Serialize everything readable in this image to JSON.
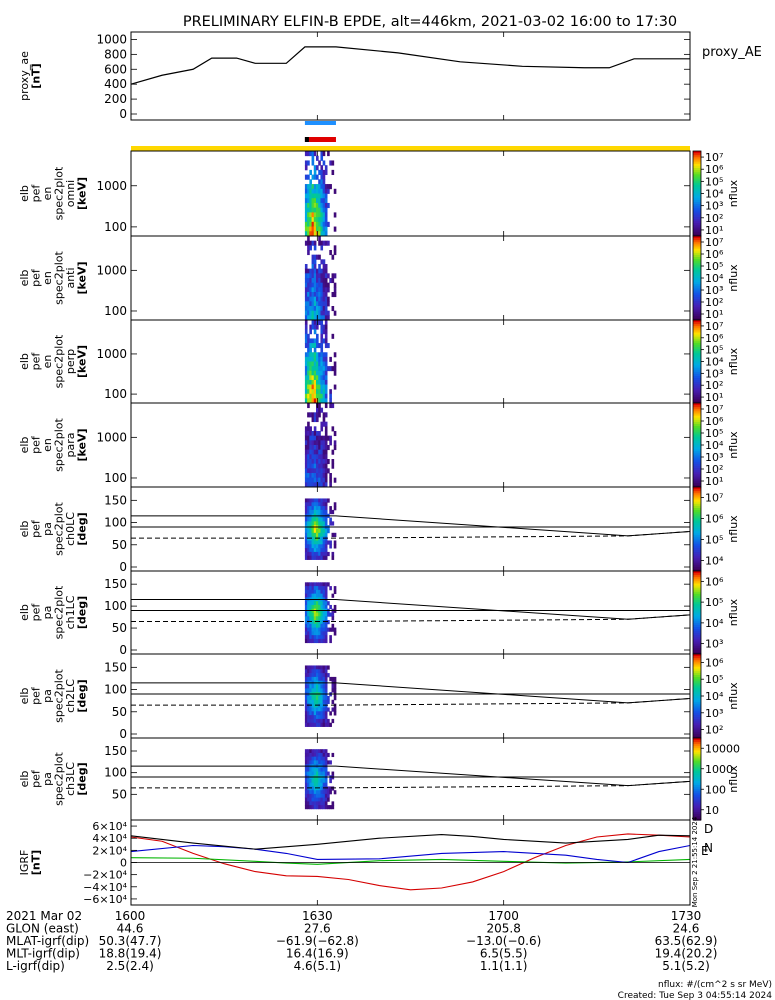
{
  "title": "PRELIMINARY ELFIN-B EPDE, alt=446km, 2021-03-02 16:00 to 17:30",
  "panels": [
    {
      "ylabel": [
        "proxy_ae",
        "[nT]"
      ],
      "right_label": "proxy_AE",
      "yticks": [
        "0",
        "200",
        "400",
        "600",
        "800",
        "1000"
      ]
    },
    {
      "ylabel": [
        "elb",
        "pef",
        "en",
        "spec2plot",
        "omni",
        "[keV]"
      ],
      "yticks": [
        "100",
        "1000"
      ],
      "cbar_ticks": [
        "10¹",
        "10²",
        "10³",
        "10⁴",
        "10⁵",
        "10⁶",
        "10⁷"
      ],
      "zlabel": "nflux"
    },
    {
      "ylabel": [
        "elb",
        "pef",
        "en",
        "spec2plot",
        "anti",
        "[keV]"
      ],
      "yticks": [
        "100",
        "1000"
      ],
      "cbar_ticks": [
        "10¹",
        "10²",
        "10³",
        "10⁴",
        "10⁵",
        "10⁶",
        "10⁷"
      ],
      "zlabel": "nflux"
    },
    {
      "ylabel": [
        "elb",
        "pef",
        "en",
        "spec2plot",
        "perp",
        "[keV]"
      ],
      "yticks": [
        "100",
        "1000"
      ],
      "cbar_ticks": [
        "10¹",
        "10²",
        "10³",
        "10⁴",
        "10⁵",
        "10⁶",
        "10⁷"
      ],
      "zlabel": "nflux"
    },
    {
      "ylabel": [
        "elb",
        "pef",
        "en",
        "spec2plot",
        "para",
        "[keV]"
      ],
      "yticks": [
        "100",
        "1000"
      ],
      "cbar_ticks": [
        "10¹",
        "10²",
        "10³",
        "10⁴",
        "10⁵",
        "10⁶",
        "10⁷"
      ],
      "zlabel": "nflux"
    },
    {
      "ylabel": [
        "elb",
        "pef",
        "pa",
        "spec2plot",
        "ch0LC",
        "[deg]"
      ],
      "yticks": [
        "0",
        "50",
        "100",
        "150"
      ],
      "cbar_ticks": [
        "10⁴",
        "10⁵",
        "10⁶",
        "10⁷"
      ],
      "zlabel": "nflux"
    },
    {
      "ylabel": [
        "elb",
        "pef",
        "pa",
        "spec2plot",
        "ch1LC",
        "[deg]"
      ],
      "yticks": [
        "0",
        "50",
        "100",
        "150"
      ],
      "cbar_ticks": [
        "10³",
        "10⁴",
        "10⁵",
        "10⁶"
      ],
      "zlabel": "nflux"
    },
    {
      "ylabel": [
        "elb",
        "pef",
        "pa",
        "spec2plot",
        "ch2LC",
        "[deg]"
      ],
      "yticks": [
        "0",
        "50",
        "100",
        "150"
      ],
      "cbar_ticks": [
        "10²",
        "10³",
        "10⁴",
        "10⁵",
        "10⁶"
      ],
      "zlabel": "nflux"
    },
    {
      "ylabel": [
        "elb",
        "pef",
        "pa",
        "spec2plot",
        "ch3LC",
        "[deg]"
      ],
      "yticks": [
        "50",
        "100",
        "150"
      ],
      "cbar_ticks": [
        "10",
        "100",
        "1000",
        "10000"
      ],
      "zlabel": "nflux"
    },
    {
      "ylabel": [
        "IGRF",
        "[nT]"
      ],
      "yticks": [
        "−6×10⁴",
        "−4×10⁴",
        "−2×10⁴",
        "0",
        "2×10⁴",
        "4×10⁴",
        "6×10⁴"
      ],
      "legend": [
        "D",
        "E",
        "N"
      ]
    }
  ],
  "footer": {
    "rows": [
      {
        "label": "2021 Mar 02",
        "values": [
          "1600",
          "1630",
          "1700",
          "1730"
        ]
      },
      {
        "label": "GLON (east)",
        "values": [
          "44.6",
          "27.6",
          "205.8",
          "24.6"
        ]
      },
      {
        "label": "MLAT-igrf(dip)",
        "values": [
          "50.3(47.7)",
          "−61.9(−62.8)",
          "−13.0(−0.6)",
          "63.5(62.9)"
        ]
      },
      {
        "label": "MLT-igrf(dip)",
        "values": [
          "18.8(19.4)",
          "16.4(16.9)",
          "6.5(5.5)",
          "19.4(20.2)"
        ]
      },
      {
        "label": "L-igrf(dip)",
        "values": [
          "2.5(2.4)",
          "4.6(5.1)",
          "1.1(1.1)",
          "5.1(5.2)"
        ]
      }
    ],
    "units": "nflux: #/(cm^2 s sr MeV)",
    "created": "Created: Tue Sep  3 04:55:14 2024",
    "side_stamp": "Mon Sep  2 21:55:14 2024"
  },
  "chart_data": {
    "type": "line",
    "x_range": [
      "16:00",
      "17:30"
    ],
    "x_ticks": [
      "1600",
      "1630",
      "1700",
      "1730"
    ],
    "proxy_ae": {
      "name": "proxy_AE",
      "x": [
        "16:00",
        "16:05",
        "16:10",
        "16:13",
        "16:17",
        "16:20",
        "16:25",
        "16:28",
        "16:33",
        "16:43",
        "16:53",
        "17:03",
        "17:13",
        "17:17",
        "17:21",
        "17:30"
      ],
      "y": [
        400,
        520,
        600,
        750,
        750,
        680,
        680,
        900,
        900,
        820,
        700,
        640,
        620,
        620,
        740,
        740
      ],
      "ylim": [
        0,
        1100
      ]
    },
    "science_zone": {
      "start": "16:28",
      "end": "16:33"
    },
    "spectrograms": {
      "energy_range_keV": [
        60,
        7000
      ],
      "pitch_range_deg": [
        0,
        180
      ],
      "log_z": true
    },
    "pitch_overlays": {
      "upper": {
        "x": [
          "16:00",
          "16:33",
          "17:20",
          "17:30"
        ],
        "y": [
          115,
          115,
          70,
          80
        ]
      },
      "middle": {
        "x": [
          "16:00",
          "17:30"
        ],
        "y": [
          90,
          90
        ]
      },
      "dashed": {
        "x": [
          "16:00",
          "16:33",
          "17:20",
          "17:30"
        ],
        "y": [
          65,
          65,
          70,
          80
        ]
      }
    },
    "igrf": {
      "ylim": [
        -70000,
        70000
      ],
      "series": [
        {
          "name": "D",
          "color": "#d40000",
          "x": [
            "16:00",
            "16:05",
            "16:10",
            "16:15",
            "16:20",
            "16:25",
            "16:30",
            "16:35",
            "16:40",
            "16:45",
            "16:50",
            "16:55",
            "17:00",
            "17:05",
            "17:10",
            "17:15",
            "17:20",
            "17:25",
            "17:30"
          ],
          "y": [
            42000,
            35000,
            15000,
            -2000,
            -15000,
            -22000,
            -23000,
            -28000,
            -38000,
            -45000,
            -42000,
            -32000,
            -15000,
            8000,
            28000,
            42000,
            47000,
            45000,
            42000
          ]
        },
        {
          "name": "E",
          "color": "#00b400",
          "x": [
            "16:00",
            "16:10",
            "16:20",
            "16:25",
            "16:30",
            "16:40",
            "16:50",
            "17:00",
            "17:10",
            "17:20",
            "17:30"
          ],
          "y": [
            8000,
            7000,
            2000,
            -1000,
            -3000,
            3000,
            5000,
            2000,
            -1000,
            1000,
            5000
          ]
        },
        {
          "name": "N",
          "color": "#0000d0",
          "x": [
            "16:00",
            "16:10",
            "16:15",
            "16:20",
            "16:25",
            "16:30",
            "16:40",
            "16:50",
            "17:00",
            "17:10",
            "17:15",
            "17:20",
            "17:25",
            "17:30"
          ],
          "y": [
            18000,
            28000,
            26000,
            22000,
            15000,
            5000,
            6000,
            15000,
            18000,
            12000,
            5000,
            0,
            18000,
            28000
          ]
        },
        {
          "name": "total",
          "color": "#000000",
          "x": [
            "16:00",
            "16:10",
            "16:20",
            "16:30",
            "16:40",
            "16:50",
            "16:55",
            "17:00",
            "17:10",
            "17:20",
            "17:25",
            "17:30"
          ],
          "y": [
            44000,
            32000,
            22000,
            30000,
            40000,
            46000,
            43000,
            38000,
            32000,
            38000,
            45000,
            44000
          ]
        }
      ]
    }
  }
}
